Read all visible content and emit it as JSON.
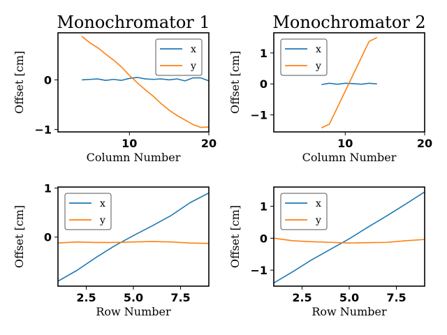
{
  "colors": {
    "x": "#1f77b4",
    "y": "#ff7f0e"
  },
  "chart_data": [
    {
      "type": "line",
      "title": "Monochromator 1",
      "xlabel": "Column Number",
      "ylabel": "Offset [cm]",
      "xlim": [
        1,
        20
      ],
      "ylim": [
        -1.05,
        0.95
      ],
      "xticks": [
        10,
        20
      ],
      "yticks": [
        -1,
        0
      ],
      "ytick_labels": [
        "−1",
        "0"
      ],
      "legend": "top-right",
      "series": [
        {
          "name": "x",
          "color": "#1f77b4",
          "x": [
            4,
            5,
            6,
            7,
            8,
            9,
            10,
            11,
            12,
            13,
            14,
            15,
            16,
            17,
            18,
            19,
            20
          ],
          "y": [
            0.0,
            0.01,
            0.02,
            -0.01,
            0.01,
            -0.01,
            0.03,
            0.05,
            0.02,
            0.01,
            0.02,
            0.0,
            0.02,
            -0.02,
            0.04,
            0.04,
            -0.02
          ]
        },
        {
          "name": "y",
          "color": "#ff7f0e",
          "x": [
            4,
            5,
            6,
            7,
            8,
            9,
            10,
            11,
            12,
            13,
            14,
            15,
            16,
            17,
            18,
            19,
            20
          ],
          "y": [
            0.88,
            0.75,
            0.65,
            0.52,
            0.4,
            0.26,
            0.09,
            -0.06,
            -0.2,
            -0.33,
            -0.48,
            -0.61,
            -0.72,
            -0.81,
            -0.9,
            -0.96,
            -0.95
          ]
        }
      ]
    },
    {
      "type": "line",
      "title": "Monochromator 2",
      "xlabel": "Column Number",
      "ylabel": "Offset [cm]",
      "xlim": [
        1,
        20
      ],
      "ylim": [
        -1.55,
        1.65
      ],
      "xticks": [
        10,
        20
      ],
      "yticks": [
        -1,
        0,
        1
      ],
      "ytick_labels": [
        "−1",
        "0",
        "1"
      ],
      "legend": "top-left",
      "series": [
        {
          "name": "x",
          "color": "#1f77b4",
          "x": [
            7,
            8,
            9,
            10,
            11,
            12,
            13,
            14
          ],
          "y": [
            -0.02,
            0.02,
            -0.01,
            0.02,
            0.01,
            -0.01,
            0.02,
            0.0
          ]
        },
        {
          "name": "y",
          "color": "#ff7f0e",
          "x": [
            7,
            8,
            13,
            14
          ],
          "y": [
            -1.42,
            -1.3,
            1.37,
            1.5
          ]
        }
      ]
    },
    {
      "type": "line",
      "title": "",
      "xlabel": "Row Number",
      "ylabel": "Offset [cm]",
      "xlim": [
        1,
        9
      ],
      "ylim": [
        -1.0,
        1.02
      ],
      "xticks": [
        2.5,
        5.0,
        7.5
      ],
      "xtick_labels": [
        "2.5",
        "5.0",
        "7.5"
      ],
      "yticks": [
        0,
        1
      ],
      "ytick_labels": [
        "0",
        "1"
      ],
      "legend": "top-left",
      "series": [
        {
          "name": "x",
          "color": "#1f77b4",
          "x": [
            1,
            2,
            3,
            4,
            5,
            6,
            7,
            8,
            9
          ],
          "y": [
            -0.9,
            -0.68,
            -0.42,
            -0.18,
            0.03,
            0.23,
            0.44,
            0.7,
            0.9
          ]
        },
        {
          "name": "y",
          "color": "#ff7f0e",
          "x": [
            1,
            2,
            3,
            4,
            5,
            6,
            7,
            8,
            9
          ],
          "y": [
            -0.12,
            -0.1,
            -0.11,
            -0.11,
            -0.1,
            -0.09,
            -0.1,
            -0.12,
            -0.13
          ]
        }
      ]
    },
    {
      "type": "line",
      "title": "",
      "xlabel": "Row Number",
      "ylabel": "Offset [cm]",
      "xlim": [
        1,
        9
      ],
      "ylim": [
        -1.5,
        1.6
      ],
      "xticks": [
        2.5,
        5.0,
        7.5
      ],
      "xtick_labels": [
        "2.5",
        "5.0",
        "7.5"
      ],
      "yticks": [
        -1,
        0,
        1
      ],
      "ytick_labels": [
        "−1",
        "0",
        "1"
      ],
      "legend": "top-left",
      "series": [
        {
          "name": "x",
          "color": "#1f77b4",
          "x": [
            1,
            2,
            3,
            4,
            5,
            6,
            7,
            8,
            9
          ],
          "y": [
            -1.4,
            -1.05,
            -0.68,
            -0.35,
            -0.02,
            0.35,
            0.7,
            1.07,
            1.45
          ]
        },
        {
          "name": "y",
          "color": "#ff7f0e",
          "x": [
            1,
            2,
            3,
            4,
            5,
            6,
            7,
            8,
            9
          ],
          "y": [
            0.0,
            -0.08,
            -0.11,
            -0.13,
            -0.15,
            -0.14,
            -0.13,
            -0.08,
            -0.04
          ]
        }
      ]
    }
  ]
}
